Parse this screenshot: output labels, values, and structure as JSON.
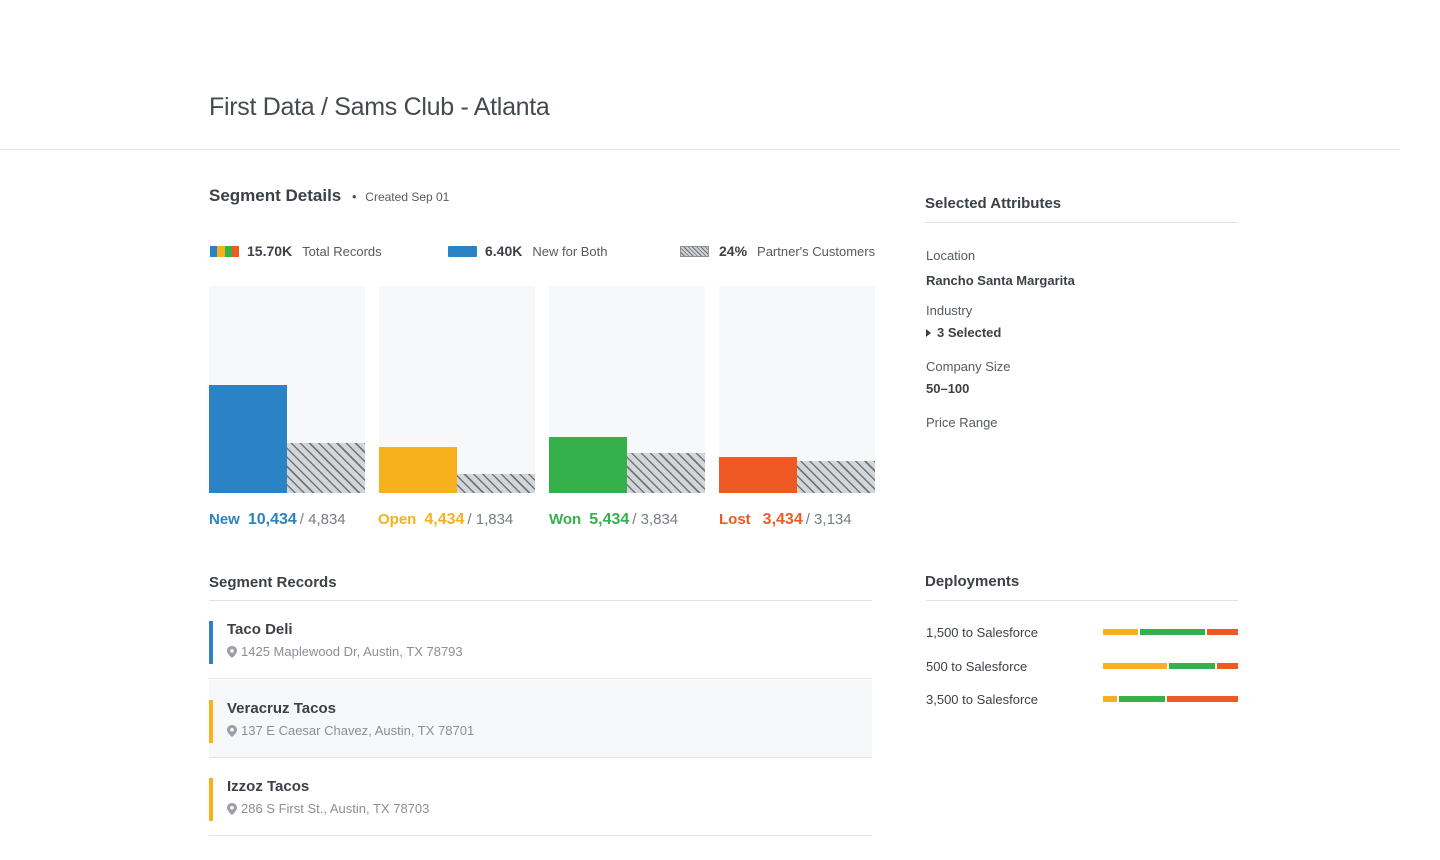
{
  "page": {
    "title": "First Data / Sams Club - Atlanta"
  },
  "segment": {
    "title": "Segment Details",
    "separator": "•",
    "created": "Created Sep 01",
    "legend": [
      {
        "value": "15.70K",
        "label": "Total Records",
        "swatch": "multi"
      },
      {
        "value": "6.40K",
        "label": "New for Both",
        "swatch": "blue"
      },
      {
        "value": "24%",
        "label": "Partner's Customers",
        "swatch": "hatch"
      }
    ]
  },
  "colors": {
    "blue": "#2b83c6",
    "yellow": "#f6b11d",
    "green": "#35b04b",
    "orange": "#ef5a24",
    "gray": "#777c82"
  },
  "chart_data": {
    "type": "bar",
    "categories": [
      "New",
      "Open",
      "Won",
      "Lost"
    ],
    "series": [
      {
        "values": [
          10434,
          4434,
          5434,
          3434
        ]
      },
      {
        "values": [
          4834,
          1834,
          3834,
          3134
        ]
      }
    ],
    "ylim": [
      0,
      20000
    ]
  },
  "stats": [
    {
      "label": "New",
      "value": "10,434",
      "rest": "/ 4,834",
      "color": "#2b83c6"
    },
    {
      "label": "Open",
      "value": "4,434",
      "rest": "/ 1,834",
      "color": "#f6b11d"
    },
    {
      "label": "Won",
      "value": "5,434",
      "rest": "/ 3,834",
      "color": "#35b04b"
    },
    {
      "label": "Lost",
      "value": "3,434",
      "rest": "/ 3,134",
      "color": "#ef5a24"
    }
  ],
  "records": {
    "title": "Segment Records",
    "items": [
      {
        "name": "Taco Deli",
        "address": "1425 Maplewood Dr, Austin, TX 78793",
        "color": "#2b83c6"
      },
      {
        "name": "Veracruz Tacos",
        "address": "137  E Caesar Chavez, Austin, TX 78701",
        "color": "#f6b11d"
      },
      {
        "name": "Izzoz Tacos",
        "address": "286  S First St., Austin, TX 78703",
        "color": "#f6b11d"
      }
    ]
  },
  "attributes": {
    "title": "Selected Attributes",
    "location_label": "Location",
    "location_value": "Rancho Santa Margarita",
    "industry_label": "Industry",
    "industry_value": "3 Selected",
    "size_label": "Company Size",
    "size_value": "50–100",
    "price_label": "Price Range"
  },
  "deployments": {
    "title": "Deployments",
    "items": [
      {
        "label": "1,500 to Salesforce",
        "yellow": 0.27,
        "green": 0.49,
        "orange": 0.24
      },
      {
        "label": "500 to Salesforce",
        "yellow": 0.49,
        "green": 0.35,
        "orange": 0.16
      },
      {
        "label": "3,500 to Salesforce",
        "yellow": 0.11,
        "green": 0.35,
        "orange": 0.54
      }
    ]
  }
}
